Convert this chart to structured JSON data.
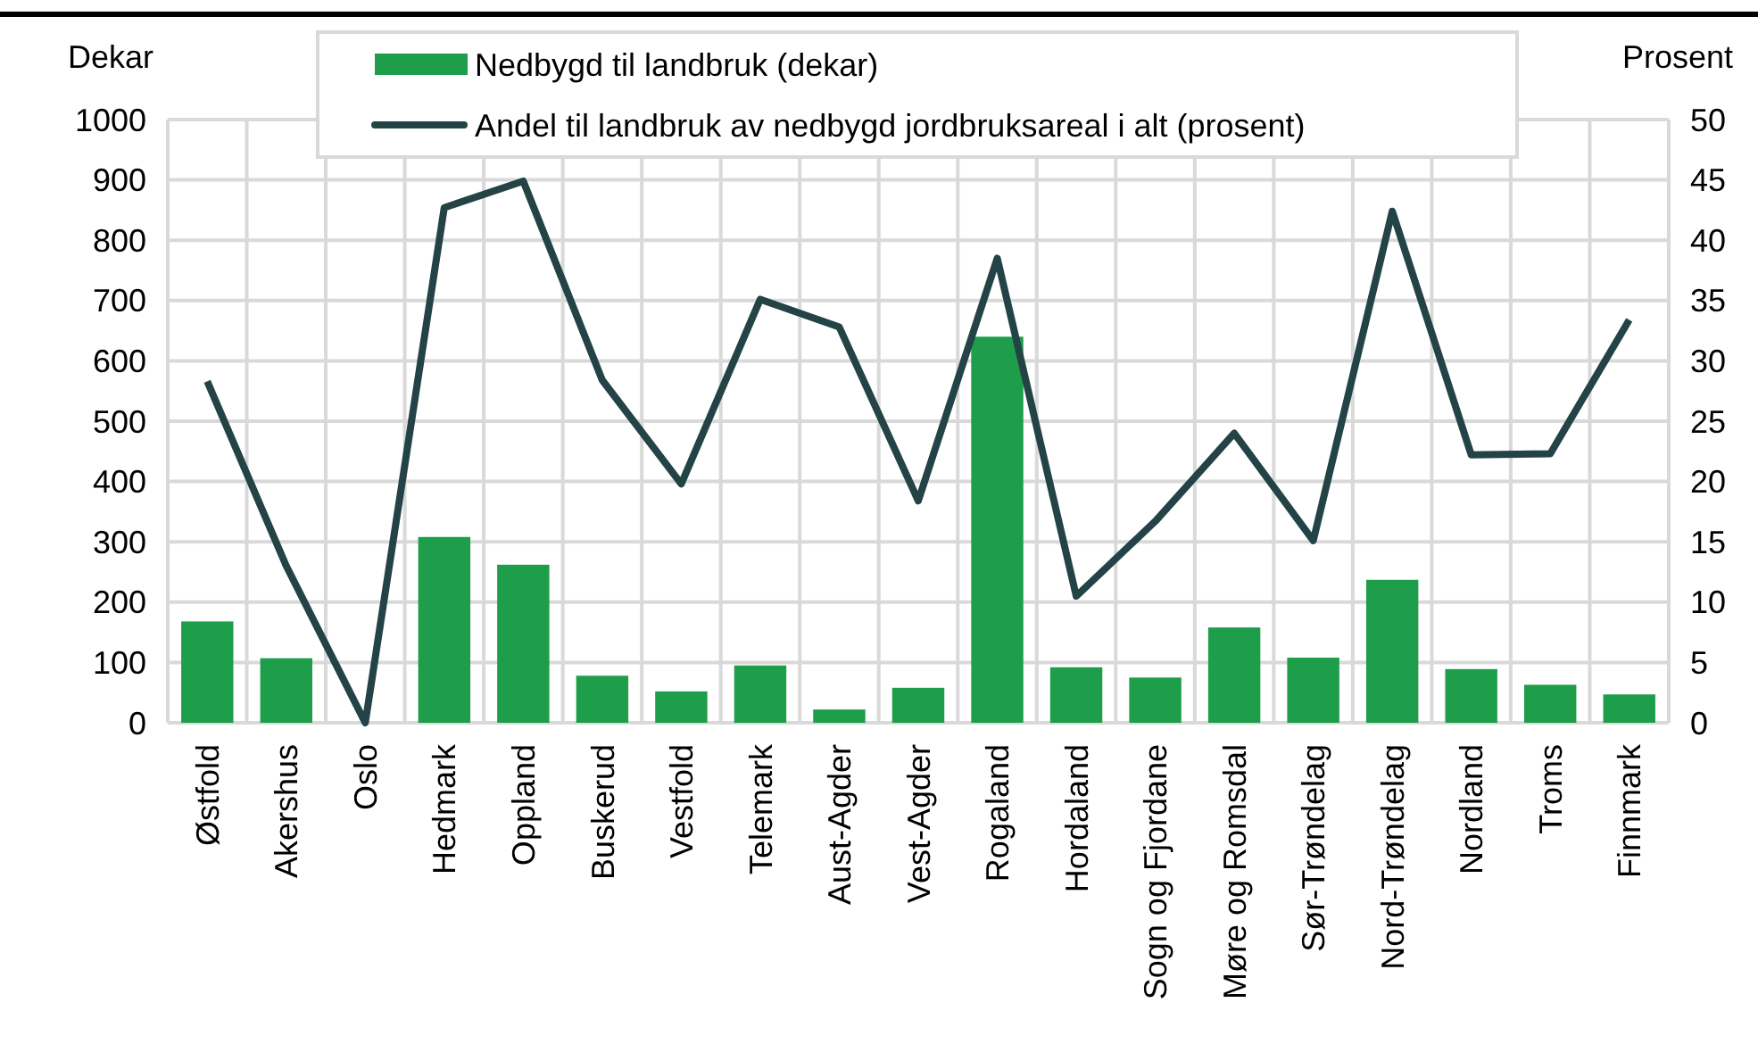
{
  "chart_data": {
    "type": "bar",
    "ylabel": "Dekar",
    "y2label": "Prosent",
    "categories": [
      "Østfold",
      "Akershus",
      "Oslo",
      "Hedmark",
      "Oppland",
      "Buskerud",
      "Vestfold",
      "Telemark",
      "Aust-Agder",
      "Vest-Agder",
      "Rogaland",
      "Hordaland",
      "Sogn og Fjordane",
      "Møre og Romsdal",
      "Sør-Trøndelag",
      "Nord-Trøndelag",
      "Nordland",
      "Troms",
      "Finnmark"
    ],
    "series": [
      {
        "name": "Nedbygd til landbruk (dekar)",
        "color": "#1e9e4a",
        "values": [
          168,
          107,
          0,
          308,
          262,
          78,
          52,
          95,
          22,
          58,
          640,
          92,
          75,
          158,
          108,
          237,
          89,
          63,
          47
        ]
      },
      {
        "name": "Andel til landbruk av nedbygd jordbruksareal i alt (prosent)",
        "type": "line",
        "axis": "y2",
        "color": "#234346",
        "values": [
          28.3,
          13,
          0,
          42.7,
          44.9,
          28.4,
          19.8,
          35.1,
          32.8,
          18.4,
          38.5,
          10.5,
          16.7,
          24,
          15.1,
          42.4,
          22.2,
          22.3,
          33.4
        ]
      }
    ],
    "ylim": [
      0,
      1000
    ],
    "yticks": [
      0,
      100,
      200,
      300,
      400,
      500,
      600,
      700,
      800,
      900,
      1000
    ],
    "y2lim": [
      0,
      50
    ],
    "y2ticks": [
      0,
      5,
      10,
      15,
      20,
      25,
      30,
      35,
      40,
      45,
      50
    ],
    "grid": true,
    "legend": "top",
    "marker": "none",
    "line_style": "solid"
  }
}
